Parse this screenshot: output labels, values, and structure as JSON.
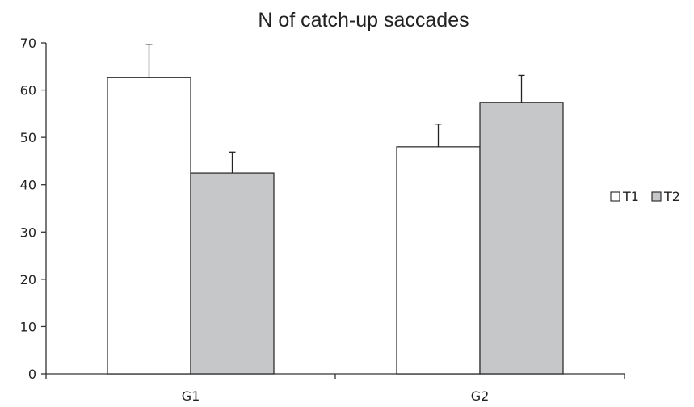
{
  "chart_data": {
    "type": "bar",
    "title": "N of catch-up saccades",
    "xlabel": "",
    "ylabel": "",
    "categories": [
      "G1",
      "G2"
    ],
    "series": [
      {
        "name": "T1",
        "values": [
          62.7,
          48.0
        ],
        "errors": [
          7.0,
          4.8
        ],
        "color": "#ffffff"
      },
      {
        "name": "T2",
        "values": [
          42.5,
          57.4
        ],
        "errors": [
          4.4,
          5.7
        ],
        "color": "#c6c7c9"
      }
    ],
    "ylim": [
      0,
      70
    ],
    "yticks": [
      0,
      10,
      20,
      30,
      40,
      50,
      60,
      70
    ],
    "grid": false,
    "legend_position": "right"
  }
}
